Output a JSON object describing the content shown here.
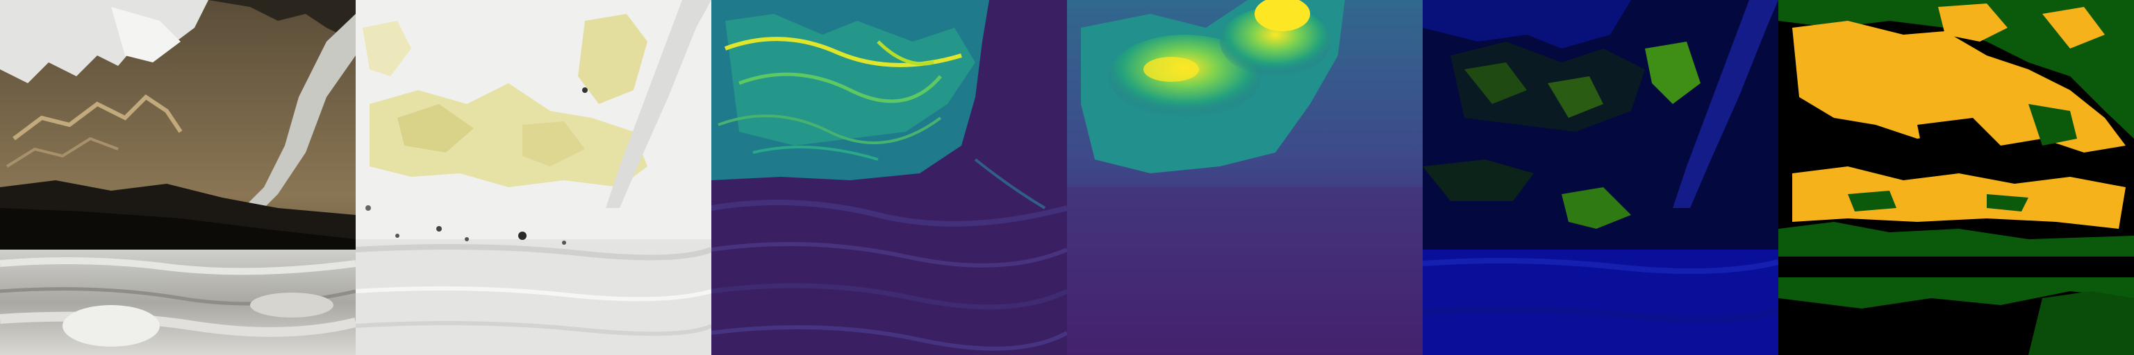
{
  "panels": [
    {
      "id": "rgb",
      "kind": "rgb-composite",
      "colors": {
        "rock": "#6b5a3f",
        "snow": "#e9eaec",
        "shadow": "#191611",
        "glacier": "#bdbcb6",
        "ridge": "#9a8561"
      }
    },
    {
      "id": "index-light",
      "kind": "index-map",
      "colors": {
        "background": "#f1f1ef",
        "vegetation": "#e6e2a6",
        "glacier": "#dcdcdc",
        "dots": "#2a2a2a"
      }
    },
    {
      "id": "slope",
      "kind": "viridis-slope",
      "colors": {
        "low": "#3b1f63",
        "mid": "#1f8e8c",
        "high": "#dfe62b"
      }
    },
    {
      "id": "elevation",
      "kind": "viridis-elevation",
      "colors": {
        "low": "#440a5b",
        "mid": "#23a17e",
        "high": "#fde725"
      }
    },
    {
      "id": "false-color",
      "kind": "false-color-composite",
      "colors": {
        "water": "#0a0f9a",
        "dark": "#030735",
        "vegetation": "#1f5a10",
        "bright": "#3f8f16"
      }
    },
    {
      "id": "classification",
      "kind": "class-map",
      "colors": {
        "background": "#000000",
        "class-green": "#0b5a0b",
        "class-orange": "#f6b21b"
      }
    }
  ]
}
